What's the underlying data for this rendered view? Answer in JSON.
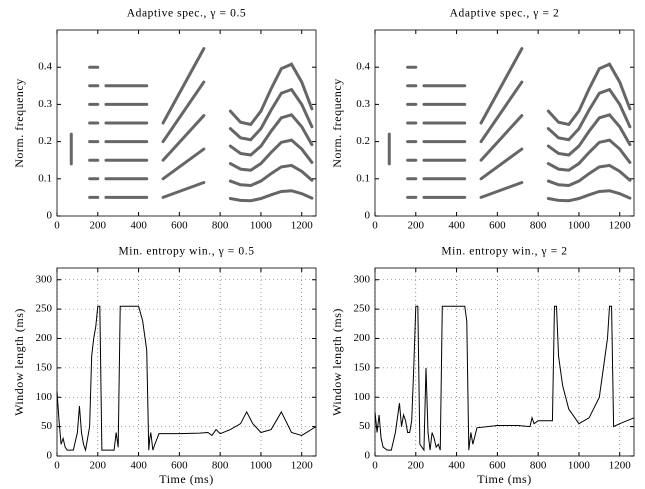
{
  "chart_data": [
    {
      "type": "spectrogram",
      "title": "Adaptive spec., γ = 0.5",
      "ylabel": "Norm. frequency",
      "color": "#333333",
      "xlim": [
        0,
        1270
      ],
      "ylim": [
        0,
        0.5
      ],
      "xticks": [
        0,
        200,
        400,
        600,
        800,
        1000,
        1200
      ],
      "yticks": [
        0,
        0.1,
        0.2,
        0.3,
        0.4
      ],
      "grid": false,
      "components": [
        {
          "x": [
            70,
            70
          ],
          "y": [
            0.14,
            0.22
          ]
        },
        {
          "x": [
            160,
            200
          ],
          "y": [
            0.05,
            0.05
          ]
        },
        {
          "x": [
            160,
            200
          ],
          "y": [
            0.1,
            0.1
          ]
        },
        {
          "x": [
            160,
            200
          ],
          "y": [
            0.15,
            0.15
          ]
        },
        {
          "x": [
            160,
            200
          ],
          "y": [
            0.2,
            0.2
          ]
        },
        {
          "x": [
            160,
            200
          ],
          "y": [
            0.25,
            0.25
          ]
        },
        {
          "x": [
            160,
            200
          ],
          "y": [
            0.3,
            0.3
          ]
        },
        {
          "x": [
            160,
            200
          ],
          "y": [
            0.35,
            0.35
          ]
        },
        {
          "x": [
            160,
            200
          ],
          "y": [
            0.4,
            0.4
          ]
        },
        {
          "x": [
            240,
            440
          ],
          "y": [
            0.05,
            0.05
          ]
        },
        {
          "x": [
            240,
            440
          ],
          "y": [
            0.1,
            0.1
          ]
        },
        {
          "x": [
            240,
            440
          ],
          "y": [
            0.15,
            0.15
          ]
        },
        {
          "x": [
            240,
            440
          ],
          "y": [
            0.2,
            0.2
          ]
        },
        {
          "x": [
            240,
            440
          ],
          "y": [
            0.25,
            0.25
          ]
        },
        {
          "x": [
            240,
            440
          ],
          "y": [
            0.3,
            0.3
          ]
        },
        {
          "x": [
            240,
            440
          ],
          "y": [
            0.35,
            0.35
          ]
        },
        {
          "x": [
            520,
            720
          ],
          "y": [
            0.05,
            0.09
          ]
        },
        {
          "x": [
            520,
            720
          ],
          "y": [
            0.1,
            0.18
          ]
        },
        {
          "x": [
            520,
            720
          ],
          "y": [
            0.15,
            0.27
          ]
        },
        {
          "x": [
            520,
            720
          ],
          "y": [
            0.2,
            0.36
          ]
        },
        {
          "x": [
            520,
            720
          ],
          "y": [
            0.25,
            0.45
          ]
        },
        {
          "x": [
            850,
            900,
            950,
            1000,
            1050,
            1100,
            1150,
            1200,
            1250
          ],
          "y": [
            0.047,
            0.042,
            0.041,
            0.047,
            0.057,
            0.066,
            0.068,
            0.06,
            0.048
          ]
        },
        {
          "x": [
            850,
            900,
            950,
            1000,
            1050,
            1100,
            1150,
            1200,
            1250
          ],
          "y": [
            0.094,
            0.084,
            0.082,
            0.094,
            0.114,
            0.132,
            0.136,
            0.12,
            0.096
          ]
        },
        {
          "x": [
            850,
            900,
            950,
            1000,
            1050,
            1100,
            1150,
            1200,
            1250
          ],
          "y": [
            0.141,
            0.126,
            0.123,
            0.141,
            0.171,
            0.198,
            0.204,
            0.18,
            0.144
          ]
        },
        {
          "x": [
            850,
            900,
            950,
            1000,
            1050,
            1100,
            1150,
            1200,
            1250
          ],
          "y": [
            0.188,
            0.168,
            0.164,
            0.188,
            0.228,
            0.264,
            0.272,
            0.24,
            0.192
          ]
        },
        {
          "x": [
            850,
            900,
            950,
            1000,
            1050,
            1100,
            1150,
            1200,
            1250
          ],
          "y": [
            0.235,
            0.21,
            0.205,
            0.235,
            0.285,
            0.33,
            0.34,
            0.3,
            0.24
          ]
        },
        {
          "x": [
            850,
            900,
            950,
            1000,
            1050,
            1100,
            1150,
            1200,
            1250
          ],
          "y": [
            0.282,
            0.252,
            0.246,
            0.282,
            0.342,
            0.396,
            0.408,
            0.36,
            0.288
          ]
        }
      ]
    },
    {
      "type": "spectrogram",
      "title": "Adaptive spec., γ = 2",
      "ylabel": "Norm. frequency",
      "color": "#333333",
      "xlim": [
        0,
        1270
      ],
      "ylim": [
        0,
        0.5
      ],
      "xticks": [
        0,
        200,
        400,
        600,
        800,
        1000,
        1200
      ],
      "yticks": [
        0,
        0.1,
        0.2,
        0.3,
        0.4
      ],
      "grid": false,
      "components": [
        {
          "x": [
            70,
            70
          ],
          "y": [
            0.14,
            0.22
          ]
        },
        {
          "x": [
            160,
            200
          ],
          "y": [
            0.05,
            0.05
          ]
        },
        {
          "x": [
            160,
            200
          ],
          "y": [
            0.1,
            0.1
          ]
        },
        {
          "x": [
            160,
            200
          ],
          "y": [
            0.15,
            0.15
          ]
        },
        {
          "x": [
            160,
            200
          ],
          "y": [
            0.2,
            0.2
          ]
        },
        {
          "x": [
            160,
            200
          ],
          "y": [
            0.25,
            0.25
          ]
        },
        {
          "x": [
            160,
            200
          ],
          "y": [
            0.3,
            0.3
          ]
        },
        {
          "x": [
            160,
            200
          ],
          "y": [
            0.35,
            0.35
          ]
        },
        {
          "x": [
            160,
            200
          ],
          "y": [
            0.4,
            0.4
          ]
        },
        {
          "x": [
            240,
            440
          ],
          "y": [
            0.05,
            0.05
          ]
        },
        {
          "x": [
            240,
            440
          ],
          "y": [
            0.1,
            0.1
          ]
        },
        {
          "x": [
            240,
            440
          ],
          "y": [
            0.15,
            0.15
          ]
        },
        {
          "x": [
            240,
            440
          ],
          "y": [
            0.2,
            0.2
          ]
        },
        {
          "x": [
            240,
            440
          ],
          "y": [
            0.25,
            0.25
          ]
        },
        {
          "x": [
            240,
            440
          ],
          "y": [
            0.3,
            0.3
          ]
        },
        {
          "x": [
            240,
            440
          ],
          "y": [
            0.35,
            0.35
          ]
        },
        {
          "x": [
            520,
            720
          ],
          "y": [
            0.05,
            0.09
          ]
        },
        {
          "x": [
            520,
            720
          ],
          "y": [
            0.1,
            0.18
          ]
        },
        {
          "x": [
            520,
            720
          ],
          "y": [
            0.15,
            0.27
          ]
        },
        {
          "x": [
            520,
            720
          ],
          "y": [
            0.2,
            0.36
          ]
        },
        {
          "x": [
            520,
            720
          ],
          "y": [
            0.25,
            0.45
          ]
        },
        {
          "x": [
            850,
            900,
            950,
            1000,
            1050,
            1100,
            1150,
            1200,
            1250
          ],
          "y": [
            0.047,
            0.042,
            0.041,
            0.047,
            0.057,
            0.066,
            0.068,
            0.06,
            0.048
          ]
        },
        {
          "x": [
            850,
            900,
            950,
            1000,
            1050,
            1100,
            1150,
            1200,
            1250
          ],
          "y": [
            0.094,
            0.084,
            0.082,
            0.094,
            0.114,
            0.132,
            0.136,
            0.12,
            0.096
          ]
        },
        {
          "x": [
            850,
            900,
            950,
            1000,
            1050,
            1100,
            1150,
            1200,
            1250
          ],
          "y": [
            0.141,
            0.126,
            0.123,
            0.141,
            0.171,
            0.198,
            0.204,
            0.18,
            0.144
          ]
        },
        {
          "x": [
            850,
            900,
            950,
            1000,
            1050,
            1100,
            1150,
            1200,
            1250
          ],
          "y": [
            0.188,
            0.168,
            0.164,
            0.188,
            0.228,
            0.264,
            0.272,
            0.24,
            0.192
          ]
        },
        {
          "x": [
            850,
            900,
            950,
            1000,
            1050,
            1100,
            1150,
            1200,
            1250
          ],
          "y": [
            0.235,
            0.21,
            0.205,
            0.235,
            0.285,
            0.33,
            0.34,
            0.3,
            0.24
          ]
        },
        {
          "x": [
            850,
            900,
            950,
            1000,
            1050,
            1100,
            1150,
            1200,
            1250
          ],
          "y": [
            0.282,
            0.252,
            0.246,
            0.282,
            0.342,
            0.396,
            0.408,
            0.36,
            0.288
          ]
        }
      ]
    },
    {
      "type": "line",
      "title": "Min. entropy win., γ = 0.5",
      "ylabel": "Window length (ms)",
      "xlabel": "Time (ms)",
      "color": "#000000",
      "xlim": [
        0,
        1270
      ],
      "ylim": [
        0,
        320
      ],
      "xticks": [
        0,
        200,
        400,
        600,
        800,
        1000,
        1200
      ],
      "yticks": [
        0,
        50,
        100,
        150,
        200,
        250,
        300
      ],
      "grid": true,
      "x": [
        0,
        10,
        20,
        30,
        40,
        50,
        60,
        80,
        100,
        110,
        120,
        130,
        140,
        150,
        160,
        170,
        180,
        190,
        200,
        210,
        220,
        240,
        260,
        280,
        290,
        300,
        310,
        320,
        400,
        420,
        440,
        450,
        455,
        460,
        470,
        480,
        500,
        600,
        700,
        740,
        760,
        780,
        800,
        850,
        900,
        930,
        960,
        1000,
        1050,
        1100,
        1150,
        1200,
        1270
      ],
      "values": [
        110,
        60,
        20,
        30,
        15,
        10,
        10,
        10,
        40,
        85,
        40,
        20,
        10,
        30,
        50,
        170,
        200,
        220,
        255,
        255,
        10,
        10,
        10,
        10,
        40,
        15,
        255,
        255,
        255,
        230,
        180,
        10,
        30,
        40,
        10,
        20,
        38,
        38,
        39,
        40,
        35,
        45,
        38,
        45,
        55,
        75,
        55,
        40,
        45,
        75,
        40,
        35,
        50
      ]
    },
    {
      "type": "line",
      "title": "Min. entropy win., γ = 2",
      "ylabel": "Window length (ms)",
      "xlabel": "Time (ms)",
      "color": "#000000",
      "xlim": [
        0,
        1270
      ],
      "ylim": [
        0,
        320
      ],
      "xticks": [
        0,
        200,
        400,
        600,
        800,
        1000,
        1200
      ],
      "yticks": [
        0,
        50,
        100,
        150,
        200,
        250,
        300
      ],
      "grid": true,
      "x": [
        0,
        10,
        20,
        30,
        40,
        60,
        80,
        100,
        120,
        130,
        140,
        150,
        160,
        170,
        180,
        190,
        200,
        210,
        220,
        240,
        250,
        260,
        270,
        280,
        290,
        300,
        310,
        320,
        330,
        400,
        420,
        440,
        450,
        460,
        470,
        480,
        500,
        600,
        700,
        760,
        770,
        780,
        800,
        850,
        870,
        880,
        890,
        900,
        920,
        950,
        1000,
        1050,
        1100,
        1120,
        1140,
        1150,
        1160,
        1170,
        1200,
        1270
      ],
      "values": [
        75,
        40,
        70,
        30,
        15,
        10,
        10,
        40,
        90,
        50,
        70,
        60,
        40,
        40,
        60,
        150,
        255,
        255,
        20,
        10,
        150,
        40,
        10,
        40,
        30,
        15,
        20,
        10,
        255,
        255,
        255,
        255,
        230,
        10,
        40,
        20,
        48,
        52,
        52,
        50,
        65,
        55,
        60,
        60,
        60,
        255,
        255,
        170,
        120,
        80,
        55,
        65,
        100,
        150,
        200,
        255,
        255,
        50,
        55,
        65
      ]
    }
  ]
}
